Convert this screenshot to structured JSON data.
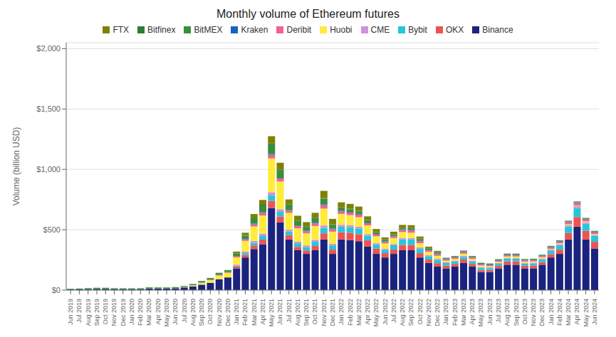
{
  "chart_data": {
    "type": "bar",
    "title": "Monthly volume of Ethereum futures",
    "y_label": "Volume (billion USD)",
    "stacked": true,
    "grid": true,
    "legend": "top",
    "ylim": [
      0,
      2050
    ],
    "yticks": [
      {
        "value": 0,
        "label": "$0"
      },
      {
        "value": 500,
        "label": "$500"
      },
      {
        "value": 1000,
        "label": "$1,000"
      },
      {
        "value": 1500,
        "label": "$1,500"
      },
      {
        "value": 2000,
        "label": "$2,000"
      }
    ],
    "categories": [
      "Jun 2019",
      "Jul 2019",
      "Aug 2019",
      "Sep 2019",
      "Oct 2019",
      "Nov 2019",
      "Dec 2019",
      "Jan 2020",
      "Feb 2020",
      "Mar 2020",
      "Apr 2020",
      "May 2020",
      "Jun 2020",
      "Jul 2020",
      "Aug 2020",
      "Sep 2020",
      "Oct 2020",
      "Nov 2020",
      "Dec 2020",
      "Jan 2021",
      "Feb 2021",
      "Mar 2021",
      "Apr 2021",
      "May 2021",
      "Jun 2021",
      "Jul 2021",
      "Aug 2021",
      "Sep 2021",
      "Oct 2021",
      "Nov 2021",
      "Dec 2021",
      "Jan 2022",
      "Feb 2022",
      "Mar 2022",
      "Apr 2022",
      "May 2022",
      "Jun 2022",
      "Jul 2022",
      "Aug 2022",
      "Sep 2022",
      "Oct 2022",
      "Nov 2022",
      "Dec 2022",
      "Jan 2023",
      "Feb 2023",
      "Mar 2023",
      "Apr 2023",
      "May 2023",
      "Jun 2023",
      "Jul 2023",
      "Aug 2023",
      "Sep 2023",
      "Oct 2023",
      "Nov 2023",
      "Dec 2023",
      "Jan 2024",
      "Feb 2024",
      "Mar 2024",
      "Apr 2024",
      "May 2024",
      "Jun 2024"
    ],
    "series": [
      {
        "name": "FTX",
        "color": "#808000",
        "values": [
          0,
          0,
          0,
          0,
          0,
          0,
          0,
          0,
          0,
          0,
          0,
          0,
          0,
          0,
          0,
          0,
          0,
          0,
          0,
          15,
          20,
          30,
          40,
          60,
          55,
          40,
          40,
          35,
          40,
          60,
          45,
          40,
          40,
          35,
          30,
          25,
          18,
          20,
          22,
          22,
          18,
          12,
          10,
          0,
          0,
          0,
          0,
          0,
          0,
          0,
          0,
          0,
          0,
          0,
          0,
          0,
          0,
          0,
          0,
          0,
          0
        ]
      },
      {
        "name": "Bitfinex",
        "color": "#2e7d32",
        "values": [
          2,
          2,
          2,
          2,
          2,
          2,
          2,
          2,
          2,
          2,
          2,
          2,
          2,
          2,
          2,
          2,
          2,
          2,
          2,
          3,
          4,
          5,
          6,
          7,
          5,
          4,
          4,
          4,
          4,
          5,
          4,
          4,
          4,
          4,
          4,
          3,
          3,
          3,
          3,
          3,
          3,
          3,
          3,
          2,
          2,
          2,
          2,
          2,
          2,
          2,
          2,
          2,
          2,
          2,
          2,
          2,
          2,
          2,
          2,
          2,
          2
        ]
      },
      {
        "name": "BitMEX",
        "color": "#388e3c",
        "values": [
          4,
          5,
          7,
          7,
          7,
          6,
          5,
          5,
          6,
          8,
          7,
          7,
          6,
          6,
          8,
          10,
          12,
          15,
          15,
          20,
          28,
          45,
          55,
          80,
          65,
          45,
          38,
          32,
          38,
          48,
          32,
          25,
          22,
          22,
          18,
          14,
          12,
          12,
          12,
          12,
          12,
          10,
          10,
          6,
          6,
          6,
          6,
          6,
          6,
          6,
          6,
          6,
          6,
          6,
          6,
          6,
          6,
          6,
          6,
          6,
          6
        ]
      },
      {
        "name": "Kraken",
        "color": "#1565c0",
        "values": [
          0,
          0,
          0,
          0,
          0,
          0,
          0,
          0,
          0,
          0,
          0,
          0,
          0,
          0,
          0,
          0,
          0,
          0,
          0,
          2,
          3,
          5,
          6,
          7,
          5,
          4,
          4,
          4,
          5,
          6,
          5,
          5,
          5,
          5,
          5,
          4,
          4,
          4,
          4,
          4,
          4,
          4,
          4,
          4,
          4,
          4,
          4,
          4,
          4,
          4,
          4,
          4,
          4,
          4,
          4,
          4,
          4,
          4,
          4,
          4,
          4
        ]
      },
      {
        "name": "Deribit",
        "color": "#f06292",
        "values": [
          0,
          0,
          0,
          0,
          0,
          0,
          0,
          0,
          0,
          2,
          2,
          2,
          2,
          2,
          3,
          4,
          5,
          6,
          6,
          8,
          12,
          18,
          22,
          30,
          25,
          18,
          18,
          18,
          22,
          28,
          20,
          22,
          22,
          22,
          18,
          14,
          14,
          14,
          18,
          22,
          18,
          14,
          14,
          12,
          12,
          14,
          12,
          10,
          10,
          10,
          12,
          12,
          10,
          10,
          10,
          12,
          14,
          18,
          22,
          18,
          14
        ]
      },
      {
        "name": "Huobi",
        "color": "#ffeb3b",
        "values": [
          0,
          0,
          0,
          0,
          0,
          0,
          0,
          0,
          0,
          0,
          0,
          0,
          0,
          3,
          8,
          15,
          22,
          30,
          38,
          60,
          90,
          120,
          150,
          280,
          230,
          140,
          110,
          100,
          115,
          140,
          100,
          90,
          85,
          80,
          72,
          58,
          42,
          50,
          50,
          44,
          36,
          28,
          25,
          14,
          14,
          18,
          14,
          12,
          10,
          10,
          12,
          12,
          10,
          10,
          10,
          6,
          6,
          6,
          6,
          6,
          6
        ]
      },
      {
        "name": "CME",
        "color": "#ce93d8",
        "values": [
          0,
          0,
          0,
          0,
          0,
          0,
          0,
          0,
          0,
          0,
          0,
          0,
          0,
          0,
          0,
          0,
          0,
          0,
          0,
          8,
          12,
          15,
          20,
          28,
          22,
          15,
          14,
          14,
          16,
          20,
          14,
          16,
          16,
          16,
          14,
          12,
          10,
          10,
          12,
          12,
          12,
          8,
          8,
          6,
          6,
          8,
          8,
          6,
          6,
          6,
          6,
          6,
          6,
          8,
          8,
          8,
          8,
          12,
          15,
          12,
          8
        ]
      },
      {
        "name": "Bybit",
        "color": "#26c6da",
        "values": [
          0,
          0,
          0,
          0,
          0,
          0,
          0,
          0,
          0,
          0,
          0,
          0,
          0,
          0,
          0,
          0,
          0,
          0,
          0,
          8,
          14,
          22,
          30,
          45,
          38,
          30,
          30,
          28,
          35,
          45,
          35,
          45,
          45,
          45,
          38,
          32,
          28,
          35,
          45,
          45,
          35,
          28,
          28,
          22,
          22,
          22,
          20,
          18,
          16,
          18,
          22,
          22,
          18,
          18,
          22,
          30,
          38,
          55,
          75,
          60,
          50
        ]
      },
      {
        "name": "OKX",
        "color": "#ef5350",
        "values": [
          0,
          0,
          0,
          0,
          0,
          0,
          0,
          0,
          0,
          0,
          0,
          0,
          0,
          0,
          0,
          0,
          0,
          0,
          0,
          15,
          22,
          30,
          38,
          58,
          50,
          35,
          28,
          28,
          35,
          50,
          35,
          60,
          60,
          58,
          52,
          44,
          36,
          36,
          44,
          44,
          36,
          28,
          28,
          22,
          22,
          28,
          22,
          18,
          16,
          20,
          28,
          28,
          22,
          22,
          22,
          28,
          35,
          52,
          80,
          70,
          55
        ]
      },
      {
        "name": "Binance",
        "color": "#1a237e",
        "values": [
          5,
          6,
          8,
          10,
          10,
          8,
          8,
          8,
          8,
          12,
          12,
          12,
          15,
          22,
          30,
          45,
          60,
          90,
          105,
          180,
          270,
          340,
          380,
          680,
          560,
          420,
          330,
          300,
          330,
          420,
          300,
          420,
          415,
          405,
          360,
          300,
          270,
          300,
          330,
          330,
          270,
          225,
          195,
          180,
          195,
          225,
          195,
          150,
          150,
          180,
          210,
          210,
          180,
          180,
          210,
          270,
          300,
          420,
          525,
          420,
          345
        ]
      }
    ]
  }
}
